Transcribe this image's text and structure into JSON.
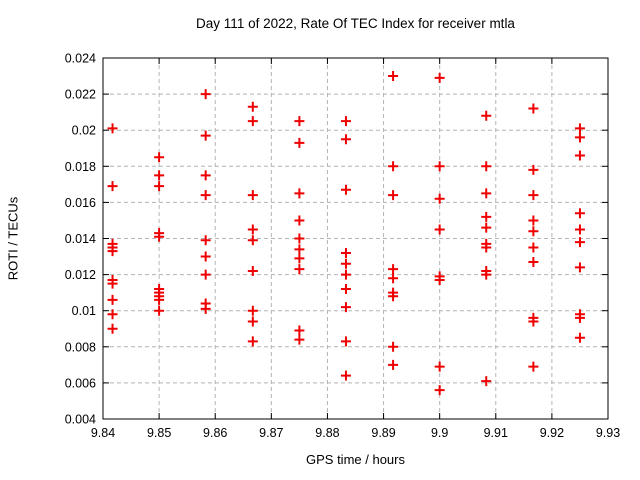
{
  "page": {
    "background": "#ffffff"
  },
  "colors": {
    "point": "#ee0000",
    "grid": "#b4b4b4",
    "axis": "#000000",
    "text": "#000000",
    "background": "#ffffff"
  },
  "chart_data": {
    "type": "scatter",
    "title": "Day 111 of 2022, Rate Of TEC Index for receiver mtla",
    "xlabel": "GPS time / hours",
    "ylabel": "ROTI / TECUs",
    "xlim": [
      9.84,
      9.93
    ],
    "ylim": [
      0.004,
      0.024
    ],
    "grid": true,
    "legend": "none",
    "marker": "plus",
    "xticks": {
      "values": [
        9.84,
        9.85,
        9.86,
        9.87,
        9.88,
        9.89,
        9.9,
        9.91,
        9.92,
        9.93
      ],
      "labels": [
        "9.84",
        "9.85",
        "9.86",
        "9.87",
        "9.88",
        "9.89",
        "9.9",
        "9.91",
        "9.92",
        "9.93"
      ]
    },
    "yticks": {
      "values": [
        0.004,
        0.006,
        0.008,
        0.01,
        0.012,
        0.014,
        0.016,
        0.018,
        0.02,
        0.022,
        0.024
      ],
      "labels": [
        "0.004",
        "0.006",
        "0.008",
        "0.01",
        "0.012",
        "0.014",
        "0.016",
        "0.018",
        "0.02",
        "0.022",
        "0.024"
      ]
    },
    "series": [
      {
        "name": "ROTI",
        "color": "#ee0000",
        "groups": [
          {
            "x": 9.8417,
            "y": [
              0.0201,
              0.0169,
              0.0137,
              0.0135,
              0.0133,
              0.0117,
              0.0115,
              0.0106,
              0.0098,
              0.009
            ]
          },
          {
            "x": 9.85,
            "y": [
              0.0185,
              0.0175,
              0.0169,
              0.0143,
              0.0141,
              0.0112,
              0.011,
              0.0108,
              0.0106,
              0.01
            ]
          },
          {
            "x": 9.8583,
            "y": [
              0.022,
              0.0197,
              0.0175,
              0.0164,
              0.0139,
              0.013,
              0.012,
              0.0104,
              0.0101
            ]
          },
          {
            "x": 9.8667,
            "y": [
              0.0213,
              0.0205,
              0.0164,
              0.0145,
              0.0139,
              0.0122,
              0.01,
              0.0094,
              0.0083
            ]
          },
          {
            "x": 9.875,
            "y": [
              0.0205,
              0.0193,
              0.0165,
              0.015,
              0.014,
              0.0134,
              0.0129,
              0.0123,
              0.0089,
              0.0084
            ]
          },
          {
            "x": 9.8833,
            "y": [
              0.0205,
              0.0195,
              0.0167,
              0.0132,
              0.0126,
              0.012,
              0.0112,
              0.0102,
              0.0083,
              0.0064
            ]
          },
          {
            "x": 9.8917,
            "y": [
              0.023,
              0.018,
              0.0164,
              0.0123,
              0.0118,
              0.011,
              0.0108,
              0.008,
              0.007
            ]
          },
          {
            "x": 9.9,
            "y": [
              0.0229,
              0.018,
              0.0162,
              0.0145,
              0.0119,
              0.0117,
              0.0069,
              0.0056
            ]
          },
          {
            "x": 9.9083,
            "y": [
              0.0208,
              0.018,
              0.0165,
              0.0152,
              0.0146,
              0.0137,
              0.0135,
              0.0122,
              0.012,
              0.0061
            ]
          },
          {
            "x": 9.9167,
            "y": [
              0.0212,
              0.0178,
              0.0164,
              0.015,
              0.0144,
              0.0135,
              0.0127,
              0.0096,
              0.0094,
              0.0069
            ]
          },
          {
            "x": 9.925,
            "y": [
              0.0201,
              0.0196,
              0.0186,
              0.0154,
              0.0145,
              0.0138,
              0.0124,
              0.0098,
              0.0096,
              0.0085
            ]
          }
        ]
      }
    ]
  }
}
